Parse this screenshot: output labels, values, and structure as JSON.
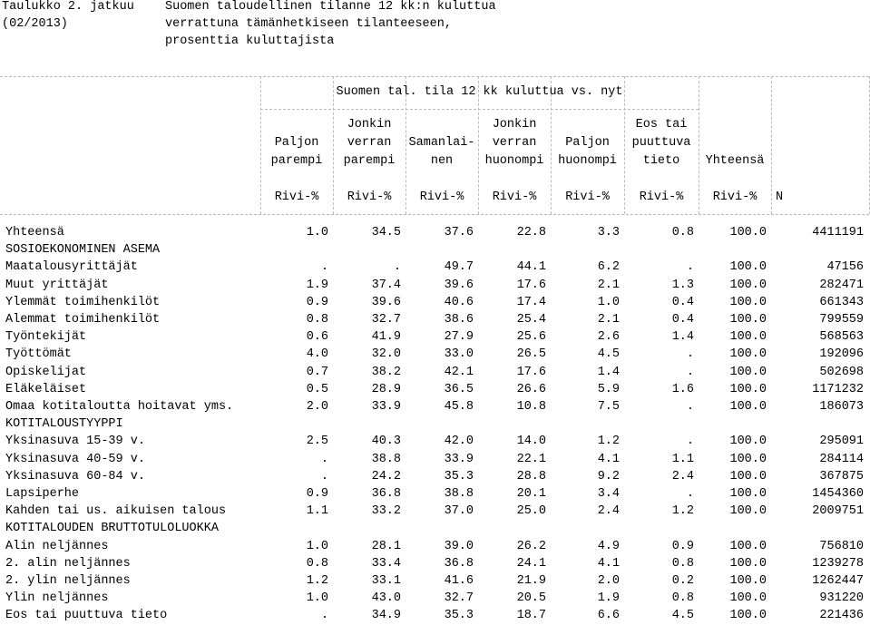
{
  "header": {
    "title": "Taulukko 2. jatkuu",
    "date": "(02/2013)",
    "description": [
      "Suomen taloudellinen tilanne 12 kk:n kuluttua",
      "verrattuna tämänhetkiseen tilanteeseen,",
      "prosenttia kuluttajista"
    ]
  },
  "table": {
    "group_header": "Suomen tal. tila 12 kk kuluttua vs. nyt",
    "columns": [
      [
        "Paljon",
        "parempi"
      ],
      [
        "Jonkin",
        "verran",
        "parempi"
      ],
      [
        "Samanlai-",
        "nen"
      ],
      [
        "Jonkin",
        "verran",
        "huonompi"
      ],
      [
        "Paljon",
        "huonompi"
      ],
      [
        "Eos tai",
        "puuttuva",
        "tieto"
      ],
      [
        "Yhteensä"
      ]
    ],
    "units": [
      "Rivi-%",
      "Rivi-%",
      "Rivi-%",
      "Rivi-%",
      "Rivi-%",
      "Rivi-%",
      "Rivi-%",
      "N"
    ],
    "rows": [
      [
        "Yhteensä",
        "1.0",
        "34.5",
        "37.6",
        "22.8",
        "3.3",
        "0.8",
        "100.0",
        "4411191"
      ],
      [
        "SOSIOEKONOMINEN ASEMA"
      ],
      [
        "Maatalousyrittäjät",
        ".",
        ".",
        "49.7",
        "44.1",
        "6.2",
        ".",
        "100.0",
        "47156"
      ],
      [
        "Muut yrittäjät",
        "1.9",
        "37.4",
        "39.6",
        "17.6",
        "2.1",
        "1.3",
        "100.0",
        "282471"
      ],
      [
        "Ylemmät toimihenkilöt",
        "0.9",
        "39.6",
        "40.6",
        "17.4",
        "1.0",
        "0.4",
        "100.0",
        "661343"
      ],
      [
        "Alemmat toimihenkilöt",
        "0.8",
        "32.7",
        "38.6",
        "25.4",
        "2.1",
        "0.4",
        "100.0",
        "799559"
      ],
      [
        "Työntekijät",
        "0.6",
        "41.9",
        "27.9",
        "25.6",
        "2.6",
        "1.4",
        "100.0",
        "568563"
      ],
      [
        "Työttömät",
        "4.0",
        "32.0",
        "33.0",
        "26.5",
        "4.5",
        ".",
        "100.0",
        "192096"
      ],
      [
        "Opiskelijat",
        "0.7",
        "38.2",
        "42.1",
        "17.6",
        "1.4",
        ".",
        "100.0",
        "502698"
      ],
      [
        "Eläkeläiset",
        "0.5",
        "28.9",
        "36.5",
        "26.6",
        "5.9",
        "1.6",
        "100.0",
        "1171232"
      ],
      [
        "Omaa kotitaloutta hoitavat yms.",
        "2.0",
        "33.9",
        "45.8",
        "10.8",
        "7.5",
        ".",
        "100.0",
        "186073"
      ],
      [
        "KOTITALOUSTYYPPI"
      ],
      [
        "Yksinasuva 15-39 v.",
        "2.5",
        "40.3",
        "42.0",
        "14.0",
        "1.2",
        ".",
        "100.0",
        "295091"
      ],
      [
        "Yksinasuva 40-59 v.",
        ".",
        "38.8",
        "33.9",
        "22.1",
        "4.1",
        "1.1",
        "100.0",
        "284114"
      ],
      [
        "Yksinasuva 60-84 v.",
        ".",
        "24.2",
        "35.3",
        "28.8",
        "9.2",
        "2.4",
        "100.0",
        "367875"
      ],
      [
        "Lapsiperhe",
        "0.9",
        "36.8",
        "38.8",
        "20.1",
        "3.4",
        ".",
        "100.0",
        "1454360"
      ],
      [
        "Kahden tai us. aikuisen talous",
        "1.1",
        "33.2",
        "37.0",
        "25.0",
        "2.4",
        "1.2",
        "100.0",
        "2009751"
      ],
      [
        "KOTITALOUDEN BRUTTOTULOLUOKKA"
      ],
      [
        "Alin neljännes",
        "1.0",
        "28.1",
        "39.0",
        "26.2",
        "4.9",
        "0.9",
        "100.0",
        "756810"
      ],
      [
        "2. alin neljännes",
        "0.8",
        "33.4",
        "36.8",
        "24.1",
        "4.1",
        "0.8",
        "100.0",
        "1239278"
      ],
      [
        "2. ylin neljännes",
        "1.2",
        "33.1",
        "41.6",
        "21.9",
        "2.0",
        "0.2",
        "100.0",
        "1262447"
      ],
      [
        "Ylin neljännes",
        "1.0",
        "43.0",
        "32.7",
        "20.5",
        "1.9",
        "0.8",
        "100.0",
        "931220"
      ],
      [
        "Eos tai puuttuva tieto",
        ".",
        "34.9",
        "35.3",
        "18.7",
        "6.6",
        "4.5",
        "100.0",
        "221436"
      ]
    ]
  }
}
